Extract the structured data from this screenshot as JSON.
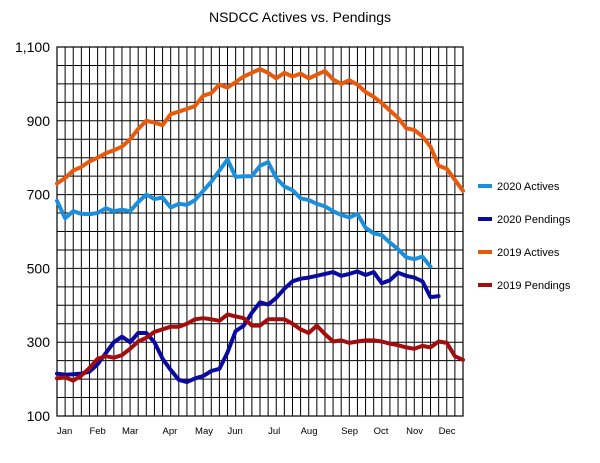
{
  "chart_data": {
    "type": "line",
    "title": "NSDCC Actives vs. Pendings",
    "xlabel": "",
    "ylabel": "",
    "ylim": [
      100,
      1100
    ],
    "yticks": [
      "100",
      "300",
      "500",
      "700",
      "900",
      "1,100"
    ],
    "ytick_values": [
      100,
      300,
      500,
      700,
      900,
      1100
    ],
    "xticks": [
      {
        "label": "Jan",
        "week": 0
      },
      {
        "label": "Feb",
        "week": 4
      },
      {
        "label": "Mar",
        "week": 8
      },
      {
        "label": "Apr",
        "week": 13
      },
      {
        "label": "May",
        "week": 17
      },
      {
        "label": "Jun",
        "week": 21
      },
      {
        "label": "Jul",
        "week": 26
      },
      {
        "label": "Aug",
        "week": 30
      },
      {
        "label": "Sep",
        "week": 35
      },
      {
        "label": "Oct",
        "week": 39
      },
      {
        "label": "Nov",
        "week": 43
      },
      {
        "label": "Dec",
        "week": 47
      }
    ],
    "num_weeks": 51,
    "legend_position": "right",
    "grid": true,
    "series": [
      {
        "name": "2020 Actives",
        "color": "#1b8fdc",
        "values": [
          683,
          636,
          655,
          648,
          647,
          650,
          663,
          655,
          659,
          655,
          680,
          700,
          688,
          692,
          665,
          675,
          672,
          685,
          710,
          735,
          765,
          795,
          748,
          750,
          750,
          778,
          788,
          745,
          722,
          712,
          690,
          685,
          675,
          668,
          655,
          645,
          638,
          648,
          610,
          595,
          590,
          570,
          552,
          530,
          525,
          532,
          505
        ]
      },
      {
        "name": "2020 Pendings",
        "color": "#0a0aa0",
        "values": [
          215,
          212,
          213,
          215,
          220,
          240,
          270,
          300,
          315,
          300,
          325,
          325,
          300,
          255,
          225,
          198,
          192,
          202,
          208,
          222,
          228,
          272,
          330,
          345,
          380,
          408,
          402,
          420,
          445,
          465,
          472,
          475,
          480,
          485,
          490,
          480,
          485,
          492,
          482,
          490,
          460,
          468,
          488,
          480,
          475,
          465,
          422,
          425
        ]
      },
      {
        "name": "2019 Actives",
        "color": "#e8590c",
        "values": [
          730,
          745,
          765,
          775,
          790,
          800,
          812,
          820,
          830,
          850,
          878,
          900,
          895,
          888,
          918,
          925,
          932,
          940,
          968,
          975,
          998,
          990,
          1005,
          1020,
          1030,
          1040,
          1030,
          1015,
          1030,
          1020,
          1028,
          1015,
          1025,
          1035,
          1012,
          1000,
          1010,
          998,
          978,
          965,
          948,
          928,
          908,
          880,
          875,
          858,
          830,
          778,
          770,
          740,
          710
        ]
      },
      {
        "name": "2019 Pendings",
        "color": "#a30d0d",
        "values": [
          202,
          205,
          196,
          210,
          230,
          255,
          262,
          258,
          265,
          282,
          302,
          312,
          328,
          335,
          342,
          342,
          350,
          362,
          365,
          362,
          358,
          375,
          370,
          365,
          345,
          345,
          362,
          362,
          362,
          350,
          335,
          325,
          345,
          322,
          302,
          305,
          298,
          302,
          305,
          305,
          302,
          296,
          292,
          286,
          282,
          290,
          286,
          302,
          298,
          262,
          252
        ]
      }
    ]
  }
}
